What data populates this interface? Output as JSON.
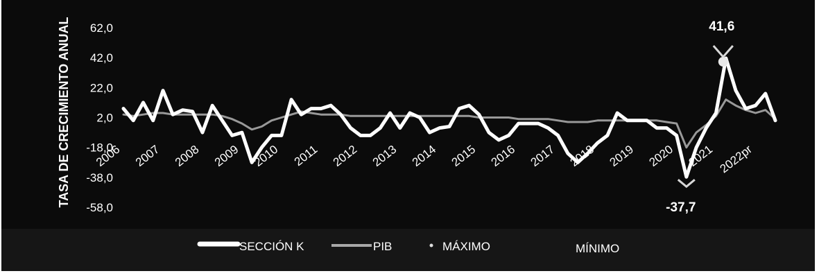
{
  "chart_data": {
    "type": "line",
    "title": "",
    "ylabel": "TASA DE CRECIMIENTO ANUAL",
    "xlabel": "",
    "ylim": [
      -58,
      62
    ],
    "yticks": [
      62,
      42,
      22,
      2,
      -18,
      -38,
      -58
    ],
    "ytick_labels": [
      "62,0",
      "42,0",
      "22,0",
      "2,0",
      "-18,0",
      "-38,0",
      "-58,0"
    ],
    "x_tick_labels": [
      "2006",
      "2007",
      "2008",
      "2009",
      "2010",
      "2011",
      "2012",
      "2013",
      "2014",
      "2015",
      "2016",
      "2017",
      "2018",
      "2019",
      "2020",
      "2021",
      "2022pr"
    ],
    "quarters_per_year": 4,
    "series": [
      {
        "name": "SECCIÓN K",
        "color": "#ffffff",
        "values": [
          8,
          0,
          12,
          0,
          20,
          4,
          7,
          6,
          -8,
          10,
          0,
          -10,
          -8,
          -28,
          -18,
          -10,
          -10,
          14,
          4,
          8,
          8,
          10,
          4,
          -5,
          -10,
          -10,
          -5,
          5,
          -5,
          5,
          2,
          -8,
          -5,
          -4,
          8,
          10,
          4,
          -8,
          -13,
          -10,
          -2,
          -2,
          -2,
          -5,
          -10,
          -22,
          -28,
          -22,
          -15,
          -10,
          5,
          0,
          0,
          0,
          -5,
          -5,
          -10,
          -37.7,
          -18,
          -5,
          5,
          41.6,
          20,
          8,
          10,
          18,
          0
        ]
      },
      {
        "name": "PIB",
        "color": "#a8a8a8",
        "values": [
          4,
          3,
          4,
          5,
          5,
          4,
          4,
          4,
          4,
          4,
          3,
          1,
          -2,
          -6,
          -4,
          0,
          2,
          4,
          6,
          5,
          4,
          4,
          4,
          3,
          3,
          3,
          3,
          3,
          3,
          3,
          3,
          3,
          3,
          3,
          3,
          3,
          2,
          2,
          2,
          2,
          1,
          1,
          1,
          1,
          0,
          -1,
          -1,
          -1,
          0,
          0,
          0,
          0,
          0,
          0,
          0,
          -1,
          -2,
          -18,
          -8,
          -3,
          3,
          14,
          10,
          7,
          5,
          7,
          1
        ]
      }
    ],
    "max_marker": {
      "label": "MÁXIMO",
      "value": 41.6,
      "value_label": "41,6"
    },
    "min_marker": {
      "label": "MÍNIMO",
      "value": -37.7,
      "value_label": "-37,7"
    },
    "legend": {
      "placement": "bottom",
      "items": [
        "SECCIÓN K",
        "PIB",
        "MÁXIMO",
        "MÍNIMO"
      ]
    },
    "colors": {
      "background": "#0b0b0b",
      "axis_text": "#ffffff",
      "pib": "#a8a8a8",
      "seccion_k": "#ffffff"
    }
  }
}
